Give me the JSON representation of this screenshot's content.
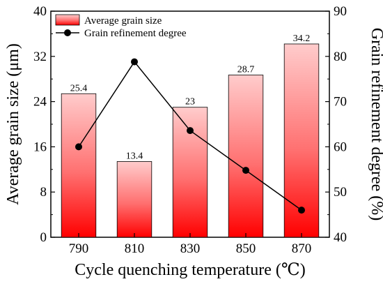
{
  "chart_data": {
    "type": "bar",
    "categories": [
      "790",
      "810",
      "830",
      "850",
      "870"
    ],
    "series": [
      {
        "name": "Average grain size",
        "type": "bar",
        "axis": "left",
        "values": [
          25.4,
          13.4,
          23,
          28.7,
          34.2
        ],
        "value_labels": [
          "25.4",
          "13.4",
          "23",
          "28.7",
          "34.2"
        ],
        "color": "#ff0000"
      },
      {
        "name": "Grain refinement degree",
        "type": "line",
        "axis": "right",
        "values": [
          60.0,
          78.8,
          63.6,
          54.8,
          46.0
        ],
        "color": "#000000"
      }
    ],
    "xlabel": "Cycle quenching temperature (℃)",
    "ylabel": "Average grain size (μm)",
    "y2label": "Grain refinement degree (%)",
    "ylim": [
      0,
      40
    ],
    "y2lim": [
      40,
      90
    ],
    "yticks": [
      "0",
      "8",
      "16",
      "24",
      "32",
      "40"
    ],
    "y2ticks": [
      "40",
      "50",
      "60",
      "70",
      "80",
      "90"
    ],
    "legend_position": "top-left",
    "grid": false
  }
}
